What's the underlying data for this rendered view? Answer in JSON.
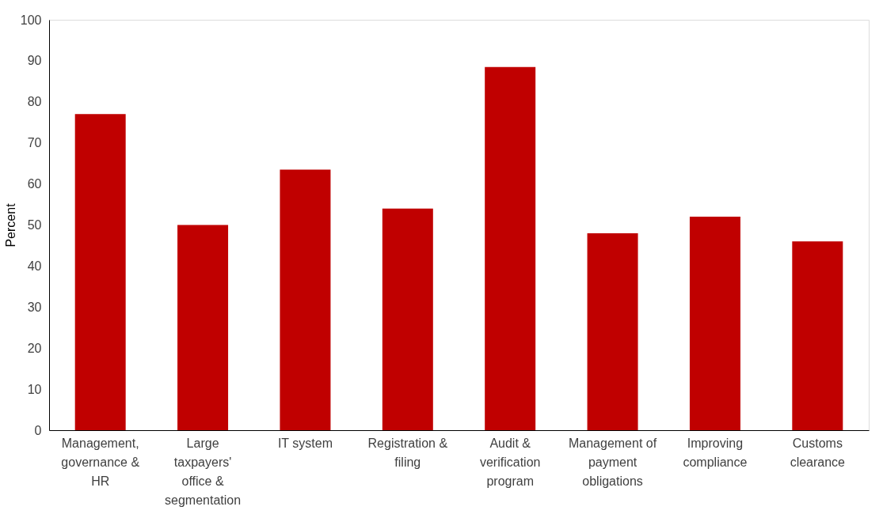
{
  "chart_data": {
    "type": "bar",
    "ylabel": "Percent",
    "categories": [
      "Management, governance & HR",
      "Large taxpayers' office & segmentation",
      "IT system",
      "Registration & filing",
      "Audit & verification program",
      "Management of payment obligations",
      "Improving compliance",
      "Customs clearance"
    ],
    "values": [
      77,
      50,
      63.5,
      54,
      88.5,
      48,
      52,
      46
    ],
    "color": "#c00000",
    "ylim": [
      0,
      100
    ],
    "yticks": [
      0,
      10,
      20,
      30,
      40,
      50,
      60,
      70,
      80,
      90,
      100
    ],
    "grid": false
  }
}
